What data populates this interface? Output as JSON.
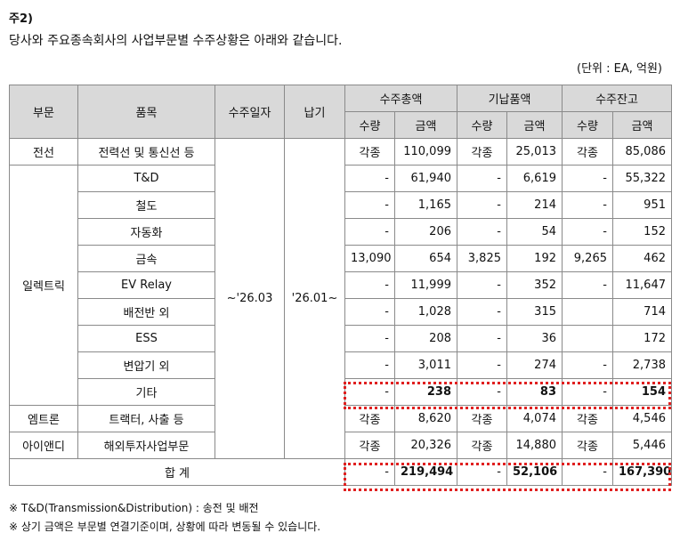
{
  "note_title": "주2)",
  "intro": "당사와 주요종속회사의 사업부문별 수주상황은 아래와 같습니다.",
  "unit": "(단위 : EA, 억원)",
  "headers": {
    "segment": "부문",
    "item": "품목",
    "order_date": "수주일자",
    "delivery": "납기",
    "order_total": "수주총액",
    "delivered": "기납품액",
    "backlog": "수주잔고",
    "qty": "수량",
    "amount": "금액"
  },
  "merged": {
    "order_date": "~'26.03",
    "delivery": "'26.01~"
  },
  "segments": {
    "cable": "전선",
    "electric": "일렉트릭",
    "emtron": "엠트론",
    "ind": "아이앤디"
  },
  "rows": [
    {
      "item": "전력선 및 통신선 등",
      "oq": "각종",
      "oa": "110,099",
      "dq": "각종",
      "da": "25,013",
      "bq": "각종",
      "ba": "85,086"
    },
    {
      "item": "T&D",
      "oq": "-",
      "oa": "61,940",
      "dq": "-",
      "da": "6,619",
      "bq": "-",
      "ba": "55,322"
    },
    {
      "item": "철도",
      "oq": "-",
      "oa": "1,165",
      "dq": "-",
      "da": "214",
      "bq": "-",
      "ba": "951"
    },
    {
      "item": "자동화",
      "oq": "-",
      "oa": "206",
      "dq": "-",
      "da": "54",
      "bq": "-",
      "ba": "152"
    },
    {
      "item": "금속",
      "oq": "13,090",
      "oa": "654",
      "dq": "3,825",
      "da": "192",
      "bq": "9,265",
      "ba": "462"
    },
    {
      "item": "EV Relay",
      "oq": "-",
      "oa": "11,999",
      "dq": "-",
      "da": "352",
      "bq": "-",
      "ba": "11,647"
    },
    {
      "item": "배전반 외",
      "oq": "-",
      "oa": "1,028",
      "dq": "-",
      "da": "315",
      "bq": "",
      "ba": "714"
    },
    {
      "item": "ESS",
      "oq": "-",
      "oa": "208",
      "dq": "-",
      "da": "36",
      "bq": "",
      "ba": "172"
    },
    {
      "item": "변압기 외",
      "oq": "-",
      "oa": "3,011",
      "dq": "-",
      "da": "274",
      "bq": "-",
      "ba": "2,738"
    },
    {
      "item": "기타",
      "oq": "-",
      "oa": "238",
      "dq": "-",
      "da": "83",
      "bq": "-",
      "ba": "154"
    },
    {
      "item": "트랙터, 사출 등",
      "oq": "각종",
      "oa": "8,620",
      "dq": "각종",
      "da": "4,074",
      "bq": "각종",
      "ba": "4,546"
    },
    {
      "item": "해외투자사업부문",
      "oq": "각종",
      "oa": "20,326",
      "dq": "각종",
      "da": "14,880",
      "bq": "각종",
      "ba": "5,446"
    }
  ],
  "total": {
    "label": "합 계",
    "oq": "-",
    "oa": "219,494",
    "dq": "-",
    "da": "52,106",
    "bq": "-",
    "ba": "167,390"
  },
  "footnotes": [
    "※ T&D(Transmission&Distribution) : 송전 및 배전",
    "※ 상기 금액은 부문별 연결기준이며, 상황에 따라 변동될 수 있습니다."
  ]
}
